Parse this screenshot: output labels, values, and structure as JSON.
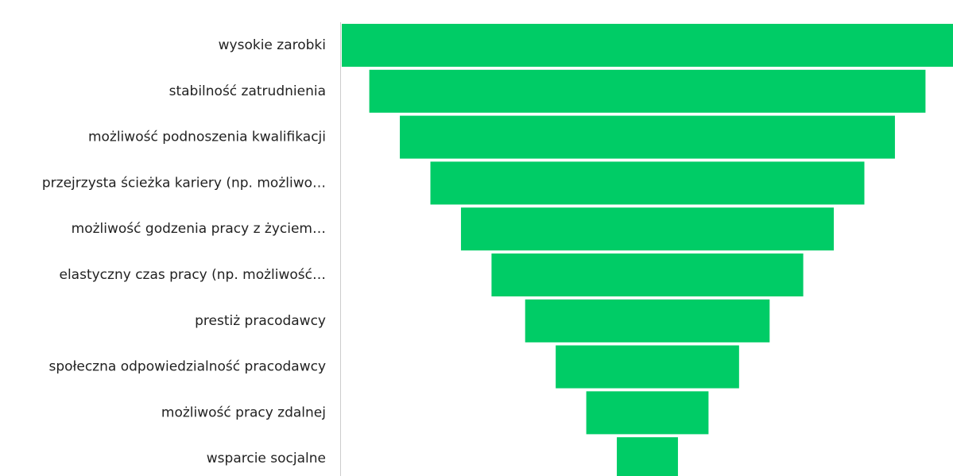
{
  "chart_data": {
    "type": "funnel",
    "categories": [
      "wysokie zarobki",
      "stabilność zatrudnienia",
      "możliwość podnoszenia kwalifikacji",
      "przejrzysta ścieżka kariery (np. możliwo…",
      "możliwość godzenia pracy z życiem…",
      "elastyczny czas pracy (np. możliwość…",
      "prestiż pracodawcy",
      "społeczna odpowiedzialność pracodawcy",
      "możliwość pracy zdalnej",
      "wsparcie socjalne"
    ],
    "values": [
      100,
      91,
      81,
      71,
      61,
      51,
      40,
      30,
      20,
      10
    ],
    "color": "#00cc66"
  }
}
